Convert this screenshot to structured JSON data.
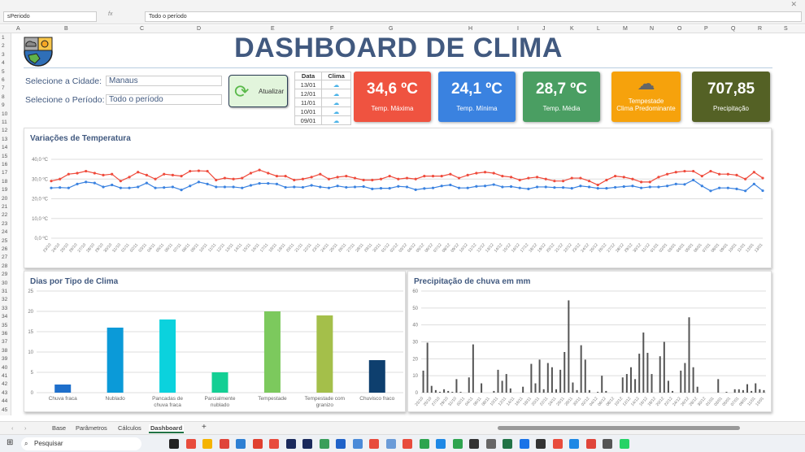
{
  "excel": {
    "name_box": "sPeriodo",
    "formula": "Todo o período",
    "fx": "fx",
    "columns": [
      "A",
      "B",
      "C",
      "D",
      "E",
      "F",
      "G",
      "H",
      "I",
      "J",
      "K",
      "L",
      "M",
      "N",
      "O",
      "P",
      "Q",
      "R",
      "S"
    ],
    "sheets": [
      "Base",
      "Parâmetros",
      "Cálculos",
      "Dashboard"
    ],
    "active_sheet": "Dashboard",
    "add_sheet": "+"
  },
  "dashboard": {
    "title": "DASHBOARD DE CLIMA",
    "city_label": "Selecione a Cidade:",
    "city_value": "Manaus",
    "period_label": "Selecione o Período:",
    "period_value": "Todo o período",
    "refresh_button": "Atualizar",
    "recent": {
      "headers": [
        "Data",
        "Clima"
      ],
      "rows": [
        "13/01",
        "12/01",
        "11/01",
        "10/01",
        "09/01"
      ]
    },
    "cards": [
      {
        "value": "34,6 ºC",
        "label": "Temp. Máxima",
        "color": "#ef5340"
      },
      {
        "value": "24,1 ºC",
        "label": "Temp. Mínima",
        "color": "#3a82e0"
      },
      {
        "value": "28,7 ºC",
        "label": "Temp. Média",
        "color": "#4a9e62"
      },
      {
        "value": "",
        "label": "Tempestade",
        "label2": "Clima Predominante",
        "color": "#f6a20c",
        "icon": "storm-cloud-icon"
      },
      {
        "value": "707,85",
        "label": "Precipitação",
        "color": "#546125"
      }
    ]
  },
  "chart_data": [
    {
      "type": "line",
      "title": "Variações de Temperatura",
      "ylim": [
        0,
        40
      ],
      "yticks": [
        "0,0 ºC",
        "10,0 ºC",
        "20,0 ºC",
        "30,0 ºC",
        "40,0 ºC"
      ],
      "grid": true,
      "x": [
        "23/10",
        "24/10",
        "25/10",
        "26/10",
        "27/10",
        "28/10",
        "29/10",
        "30/10",
        "31/10",
        "01/11",
        "02/11",
        "03/11",
        "04/11",
        "05/11",
        "06/11",
        "07/11",
        "08/11",
        "09/11",
        "10/11",
        "11/11",
        "12/11",
        "13/11",
        "14/11",
        "15/11",
        "16/11",
        "17/11",
        "18/11",
        "19/11",
        "20/11",
        "21/11",
        "22/11",
        "23/11",
        "24/11",
        "25/11",
        "26/11",
        "27/11",
        "28/11",
        "29/11",
        "30/11",
        "01/12",
        "02/12",
        "03/12",
        "04/12",
        "05/12",
        "06/12",
        "07/12",
        "08/12",
        "09/12",
        "10/12",
        "11/12",
        "12/12",
        "13/12",
        "14/12",
        "15/12",
        "16/12",
        "17/12",
        "18/12",
        "19/12",
        "20/12",
        "21/12",
        "22/12",
        "23/12",
        "24/12",
        "25/12",
        "26/12",
        "27/12",
        "28/12",
        "29/12",
        "30/12",
        "31/12",
        "01/01",
        "02/01",
        "03/01",
        "04/01",
        "05/01",
        "06/01",
        "07/01",
        "08/01",
        "09/01",
        "10/01",
        "11/01",
        "12/01",
        "13/01"
      ],
      "series": [
        {
          "color": "#ef4b3c",
          "values": [
            29,
            30,
            32.5,
            33,
            34,
            33,
            32,
            32.5,
            29,
            31,
            33.5,
            32,
            30,
            32.5,
            32,
            31.5,
            34,
            34.2,
            34,
            29.5,
            30.5,
            30,
            30.5,
            33,
            34.6,
            33,
            31.5,
            31.5,
            29.5,
            30,
            31,
            32.5,
            30,
            31,
            31.5,
            30.5,
            29.5,
            29.5,
            30,
            31.5,
            30,
            30.5,
            30,
            31.5,
            31.5,
            31.5,
            32.5,
            30.5,
            32,
            33,
            33.5,
            33,
            31.5,
            31,
            29.5,
            30.5,
            31,
            30,
            29,
            29,
            30.5,
            30.5,
            29,
            27,
            29.5,
            31.5,
            31,
            30,
            28.5,
            28.5,
            31,
            32.5,
            33.5,
            34,
            34,
            31.5,
            34,
            32.5,
            32.5,
            32,
            30,
            33.5,
            30.5
          ]
        },
        {
          "color": "#3a82e0",
          "values": [
            25.5,
            25.7,
            25.5,
            27.5,
            28.5,
            28,
            26,
            27,
            25.5,
            25.5,
            26,
            28,
            25.5,
            25.7,
            26,
            24.5,
            26.5,
            28.5,
            27.5,
            26,
            26,
            26,
            25.5,
            26.8,
            27.8,
            27.8,
            27.5,
            25.8,
            26,
            25.8,
            26.8,
            26,
            25.5,
            26.5,
            25.8,
            26,
            26.2,
            25,
            25.3,
            25.3,
            26.3,
            26,
            24.6,
            25.2,
            25.5,
            26.5,
            27,
            25.5,
            25.5,
            26.3,
            26.5,
            27.2,
            26,
            26.2,
            25.5,
            25,
            26,
            26,
            25.7,
            25.7,
            25.3,
            26.5,
            26,
            25.3,
            25.3,
            25.8,
            26.2,
            26.5,
            25.5,
            26,
            26,
            26.5,
            27.5,
            27.3,
            29.5,
            26.5,
            24,
            25.5,
            25.5,
            25,
            24,
            27.5,
            24.1
          ]
        }
      ]
    },
    {
      "type": "bar",
      "title": "Dias por Tipo de Clima",
      "ylim": [
        0,
        25
      ],
      "yticks": [
        "0",
        "5",
        "10",
        "15",
        "20",
        "25"
      ],
      "grid": true,
      "categories": [
        "Chuva fraca",
        "Nublado",
        "Pancadas de chuva fraca",
        "Parcialmente nublado",
        "Tempestade",
        "Tempestade com granizo",
        "Chuvisco fraco"
      ],
      "values": [
        2,
        16,
        18,
        5,
        20,
        19,
        8
      ],
      "colors": [
        "#1e6fcb",
        "#0b9ad8",
        "#0bd2dd",
        "#13cf94",
        "#7cc95d",
        "#a4bf4a",
        "#0e3f6e"
      ]
    },
    {
      "type": "bar",
      "title": "Precipitação de chuva em mm",
      "ylim": [
        0,
        60
      ],
      "yticks": [
        "0",
        "10",
        "20",
        "30",
        "40",
        "50",
        "60"
      ],
      "grid": true,
      "color": "#555555",
      "values": [
        13,
        29.5,
        4,
        1.5,
        0.5,
        2,
        1,
        0.5,
        8,
        0.5,
        0,
        9,
        28.5,
        0,
        5.5,
        0,
        0,
        1,
        13.5,
        7,
        11,
        2.5,
        0,
        0,
        3.5,
        0,
        17,
        5.5,
        19.5,
        2,
        17.5,
        15,
        2,
        13.5,
        24,
        54.5,
        6,
        1.5,
        28,
        19.5,
        1.5,
        0,
        0.5,
        10,
        1,
        0,
        0,
        0,
        9,
        11,
        15,
        8,
        23,
        35.5,
        23.5,
        11,
        0,
        21.5,
        30,
        7,
        1,
        0,
        13,
        17.5,
        44.5,
        15,
        3.5,
        0,
        0,
        0,
        0,
        8,
        0,
        0.5,
        0,
        2,
        2,
        1.5,
        5,
        1,
        5.5,
        2,
        1.5
      ]
    }
  ]
}
